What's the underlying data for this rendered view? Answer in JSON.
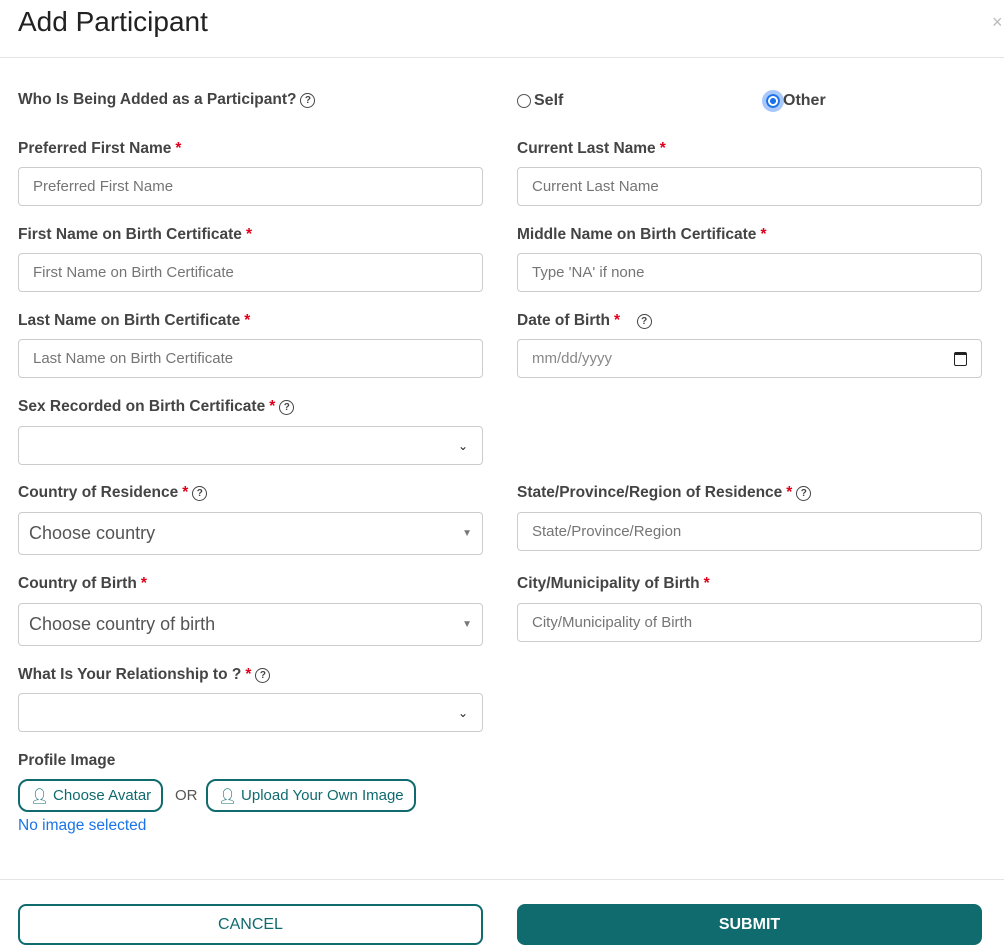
{
  "dialog": {
    "title": "Add Participant",
    "close_icon": "×"
  },
  "who": {
    "label": "Who Is Being Added as a Participant?",
    "options": [
      {
        "label": "Self",
        "selected": false
      },
      {
        "label": "Other",
        "selected": true
      }
    ]
  },
  "fields": {
    "preferred_first": {
      "label": "Preferred First Name",
      "placeholder": "Preferred First Name"
    },
    "current_last": {
      "label": "Current Last Name",
      "placeholder": "Current Last Name"
    },
    "first_birth": {
      "label": "First Name on Birth Certificate",
      "placeholder": "First Name on Birth Certificate"
    },
    "middle_birth": {
      "label": "Middle Name on Birth Certificate",
      "placeholder": "Type 'NA' if none"
    },
    "last_birth": {
      "label": "Last Name on Birth Certificate",
      "placeholder": "Last Name on Birth Certificate"
    },
    "dob": {
      "label": "Date of Birth",
      "placeholder": "mm/dd/yyyy"
    },
    "sex": {
      "label": "Sex Recorded on Birth Certificate",
      "value": ""
    },
    "country_res": {
      "label": "Country of Residence",
      "value": "Choose country"
    },
    "state_res": {
      "label": "State/Province/Region of Residence",
      "placeholder": "State/Province/Region"
    },
    "country_birth": {
      "label": "Country of Birth",
      "value": "Choose country of birth"
    },
    "city_birth": {
      "label": "City/Municipality of Birth",
      "placeholder": "City/Municipality of Birth"
    },
    "relationship": {
      "label": "What Is Your Relationship to ?",
      "value": ""
    }
  },
  "profile": {
    "label": "Profile Image",
    "choose_avatar": "Choose Avatar",
    "or": "OR",
    "upload": "Upload Your Own Image",
    "status": "No image selected"
  },
  "footer": {
    "cancel": "CANCEL",
    "submit": "SUBMIT"
  },
  "colors": {
    "accent": "#0f6b6e",
    "link": "#1a73e8",
    "required": "#e0001b"
  }
}
